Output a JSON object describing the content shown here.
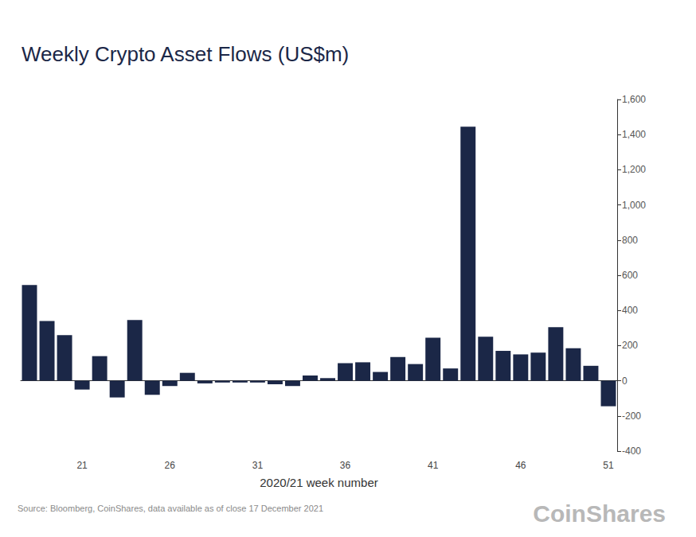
{
  "chart_data": {
    "type": "bar",
    "title": "Weekly Crypto Asset Flows (US$m)",
    "x_label": "2020/21 week number",
    "source": "Source: Bloomberg, CoinShares, data available as of close 17 December 2021",
    "logo": "CoinShares",
    "categories": [
      null,
      null,
      null,
      "21",
      null,
      null,
      null,
      null,
      "26",
      null,
      null,
      null,
      null,
      "31",
      null,
      null,
      null,
      null,
      "36",
      null,
      null,
      null,
      null,
      "41",
      null,
      null,
      null,
      null,
      "46",
      null,
      null,
      null,
      null,
      "51"
    ],
    "values": [
      545,
      340,
      260,
      -50,
      140,
      -95,
      345,
      -80,
      -30,
      45,
      -15,
      -10,
      -10,
      -10,
      -20,
      -30,
      30,
      15,
      100,
      105,
      50,
      135,
      95,
      245,
      70,
      1445,
      250,
      170,
      150,
      160,
      305,
      185,
      85,
      -145
    ],
    "color": "#1b2747",
    "ylim": [
      -400,
      1600
    ],
    "yticks": [
      -400,
      -200,
      0,
      200,
      400,
      600,
      800,
      {
        "value": 1000,
        "label": "1,000"
      },
      {
        "value": 1200,
        "label": "1,200"
      },
      {
        "value": 1400,
        "label": "1,400"
      },
      {
        "value": 1600,
        "label": "1,600"
      }
    ],
    "grid": false
  }
}
